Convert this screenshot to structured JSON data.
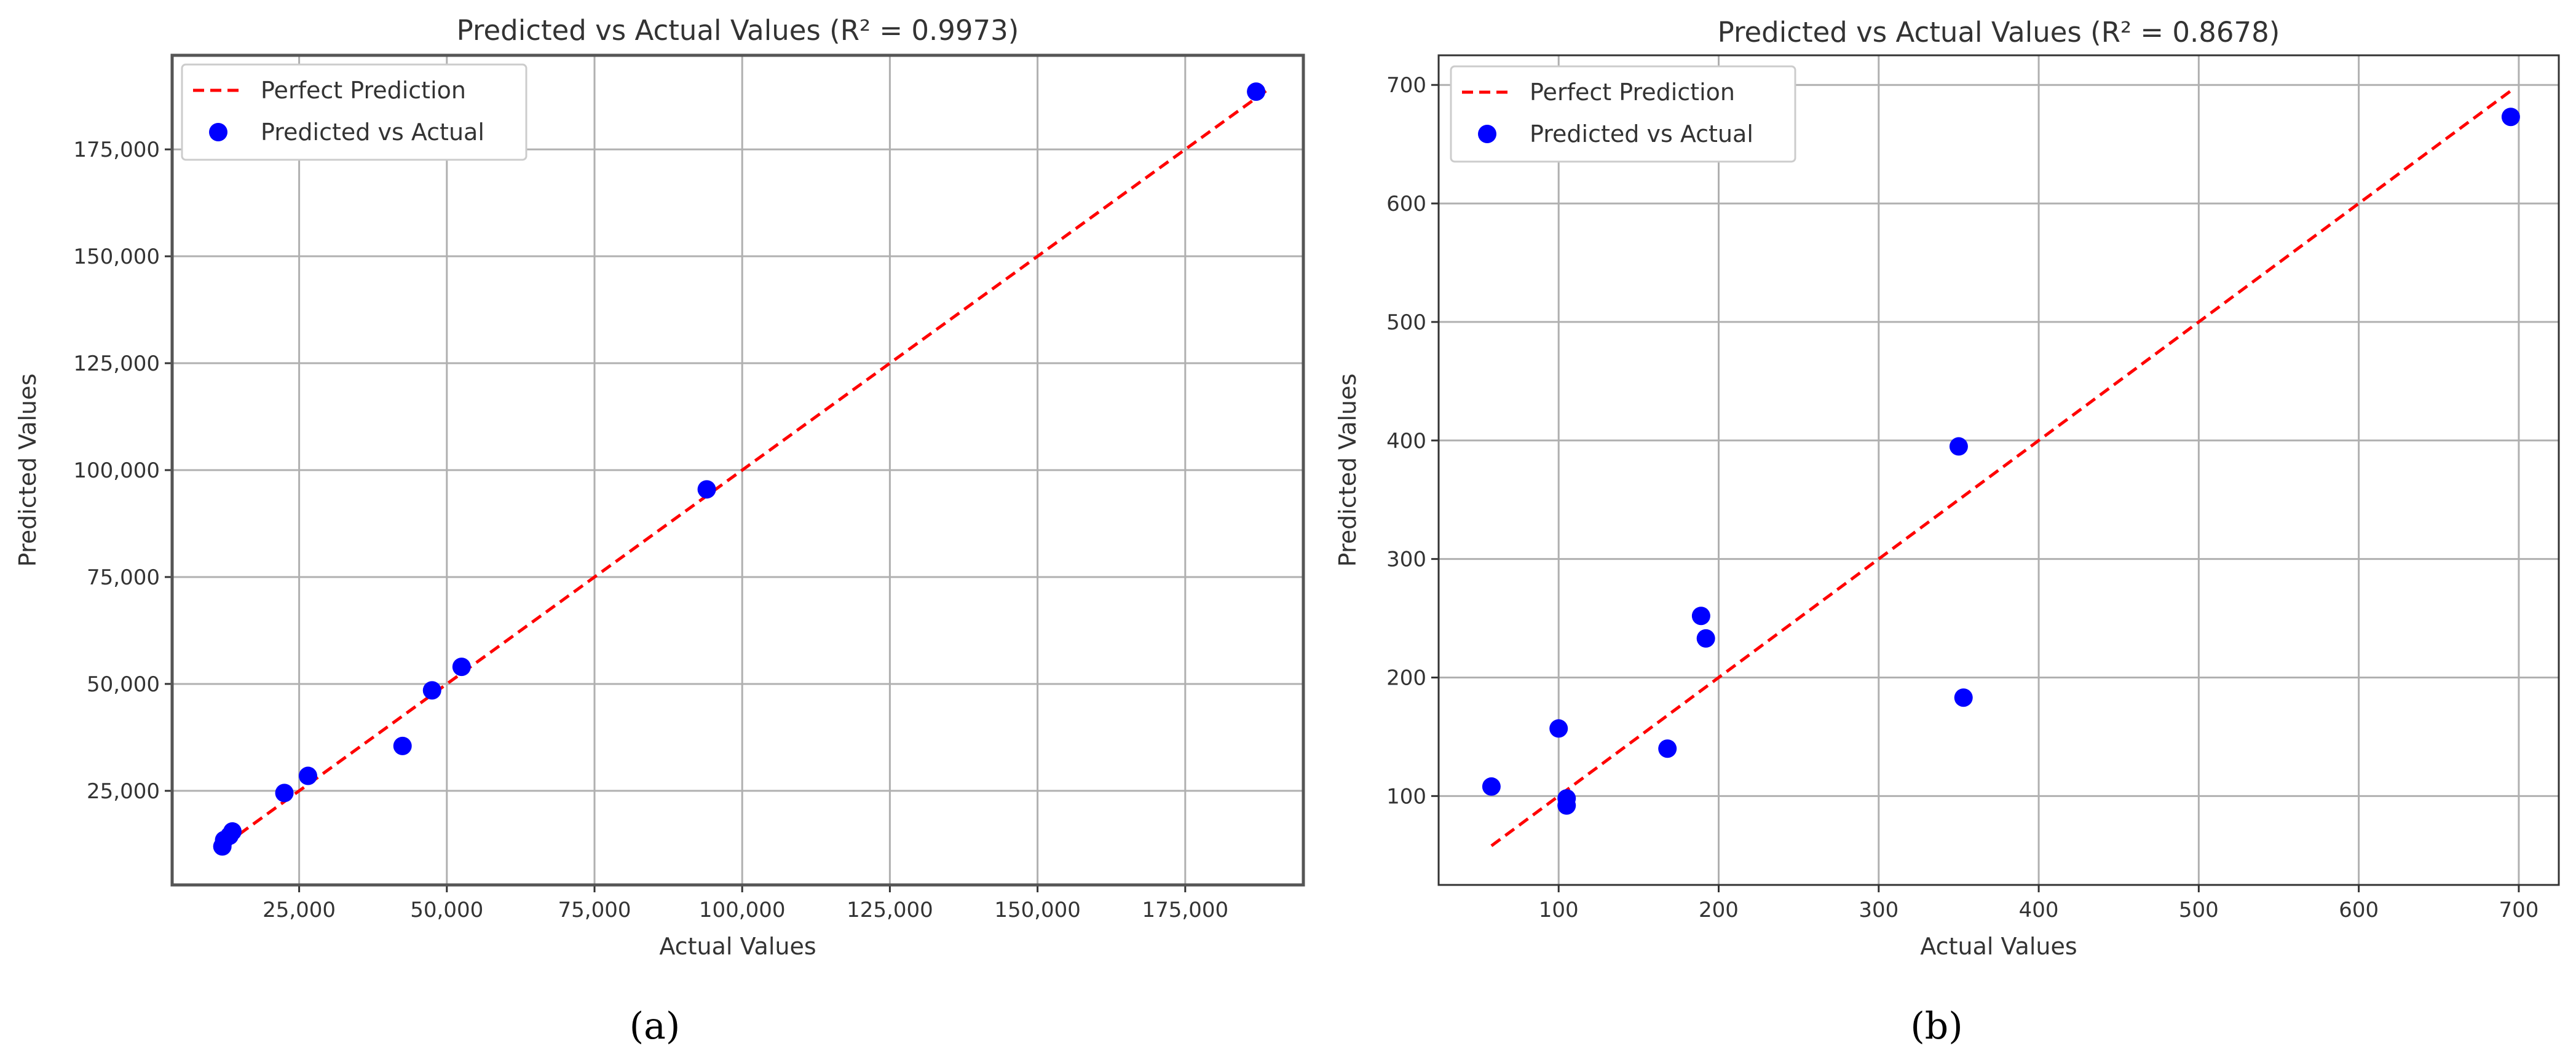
{
  "chart_data": [
    {
      "type": "scatter",
      "title": "Predicted vs Actual Values (R² = 0.9973)",
      "xlabel": "Actual Values",
      "ylabel": "Predicted Values",
      "xlim": [
        3500,
        195000
      ],
      "ylim": [
        3000,
        197000
      ],
      "xticks": [
        25000,
        50000,
        75000,
        100000,
        125000,
        150000,
        175000
      ],
      "xtick_labels": [
        "25,000",
        "50,000",
        "75,000",
        "100,000",
        "125,000",
        "150,000",
        "175,000"
      ],
      "yticks": [
        25000,
        50000,
        75000,
        100000,
        125000,
        150000,
        175000
      ],
      "ytick_labels": [
        "25,000",
        "50,000",
        "75,000",
        "100,000",
        "125,000",
        "150,000",
        "175,000"
      ],
      "grid": true,
      "legend_position": "top-left",
      "reference_line": {
        "name": "Perfect Prediction",
        "x": [
          12500,
          189000
        ],
        "y": [
          12500,
          189000
        ],
        "color": "#ff0000",
        "style": "dashed"
      },
      "series": [
        {
          "name": "Predicted vs Actual",
          "color": "#0000ff",
          "x": [
            12000,
            12300,
            13200,
            13700,
            22500,
            26500,
            42500,
            47500,
            52500,
            94000,
            187000
          ],
          "y": [
            12000,
            13500,
            14500,
            15500,
            24500,
            28500,
            35500,
            48500,
            54000,
            95500,
            188500
          ]
        }
      ],
      "caption": "(a)"
    },
    {
      "type": "scatter",
      "title": "Predicted vs Actual Values (R² = 0.8678)",
      "xlabel": "Actual Values",
      "ylabel": "Predicted Values",
      "xlim": [
        25,
        725
      ],
      "ylim": [
        25,
        725
      ],
      "xticks": [
        100,
        200,
        300,
        400,
        500,
        600,
        700
      ],
      "xtick_labels": [
        "100",
        "200",
        "300",
        "400",
        "500",
        "600",
        "700"
      ],
      "yticks": [
        100,
        200,
        300,
        400,
        500,
        600,
        700
      ],
      "ytick_labels": [
        "100",
        "200",
        "300",
        "400",
        "500",
        "600",
        "700"
      ],
      "grid": true,
      "legend_position": "top-left",
      "reference_line": {
        "name": "Perfect Prediction",
        "x": [
          58,
          695
        ],
        "y": [
          58,
          695
        ],
        "color": "#ff0000",
        "style": "dashed"
      },
      "series": [
        {
          "name": "Predicted vs Actual",
          "color": "#0000ff",
          "x": [
            58,
            100,
            105,
            105,
            168,
            189,
            192,
            350,
            353,
            695
          ],
          "y": [
            108,
            157,
            98,
            92,
            140,
            252,
            233,
            395,
            183,
            673
          ]
        }
      ],
      "caption": "(b)"
    }
  ]
}
